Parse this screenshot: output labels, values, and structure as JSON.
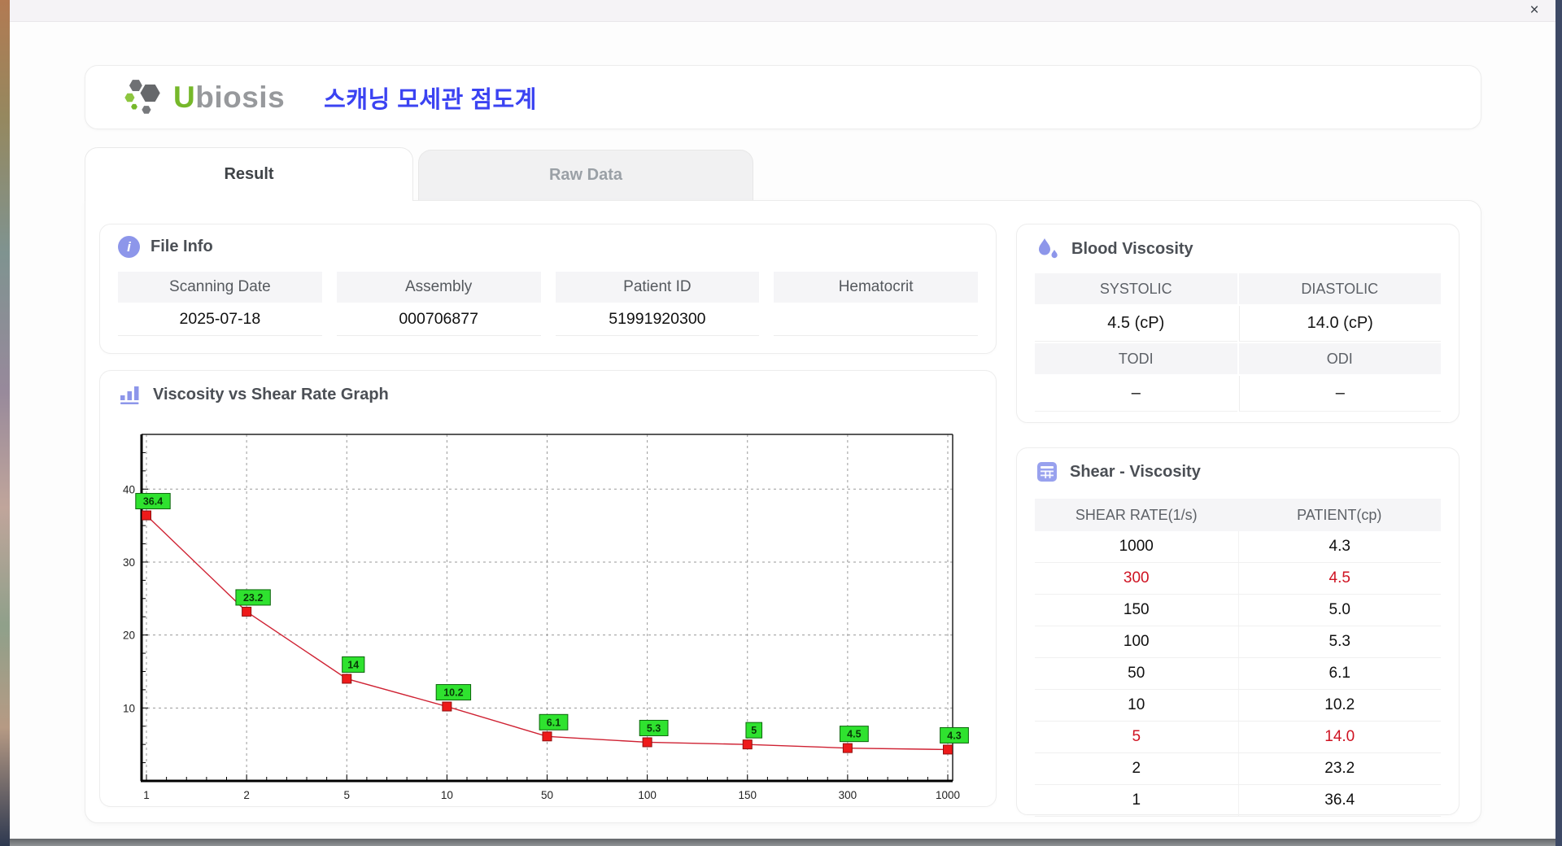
{
  "window": {
    "close_label": "×"
  },
  "icons": {
    "info_glyph": "i"
  },
  "header": {
    "logo_u": "U",
    "logo_rest": "biosis",
    "title_ko": "스캐닝 모세관 점도계"
  },
  "tabs": [
    {
      "label": "Result"
    },
    {
      "label": "Raw Data"
    }
  ],
  "file_info": {
    "title": "File Info",
    "fields": [
      {
        "label": "Scanning Date",
        "value": "2025-07-18"
      },
      {
        "label": "Assembly",
        "value": "000706877"
      },
      {
        "label": "Patient ID",
        "value": "51991920300"
      },
      {
        "label": "Hematocrit",
        "value": ""
      }
    ]
  },
  "graph": {
    "title": "Viscosity vs Shear Rate Graph"
  },
  "blood_viscosity": {
    "title": "Blood Viscosity",
    "cells": [
      {
        "header": "SYSTOLIC",
        "value": "4.5 (cP)"
      },
      {
        "header": "DIASTOLIC",
        "value": "14.0 (cP)"
      },
      {
        "header": "TODI",
        "value": "–"
      },
      {
        "header": "ODI",
        "value": "–"
      }
    ]
  },
  "shear_table": {
    "title": "Shear - Viscosity",
    "columns": [
      "SHEAR RATE(1/s)",
      "PATIENT(cp)"
    ],
    "rows": [
      {
        "shear": "1000",
        "patient": "4.3",
        "highlight": false
      },
      {
        "shear": "300",
        "patient": "4.5",
        "highlight": true
      },
      {
        "shear": "150",
        "patient": "5.0",
        "highlight": false
      },
      {
        "shear": "100",
        "patient": "5.3",
        "highlight": false
      },
      {
        "shear": "50",
        "patient": "6.1",
        "highlight": false
      },
      {
        "shear": "10",
        "patient": "10.2",
        "highlight": false
      },
      {
        "shear": "5",
        "patient": "14.0",
        "highlight": true
      },
      {
        "shear": "2",
        "patient": "23.2",
        "highlight": false
      },
      {
        "shear": "1",
        "patient": "36.4",
        "highlight": false
      }
    ]
  },
  "chart_data": {
    "type": "line",
    "title": "Viscosity vs Shear Rate Graph",
    "x": [
      1,
      2,
      5,
      10,
      50,
      100,
      150,
      300,
      1000
    ],
    "y": [
      36.4,
      23.2,
      14,
      10.2,
      6.1,
      5.3,
      5,
      4.5,
      4.3
    ],
    "point_labels": [
      "36.4",
      "23.2",
      "14",
      "10.2",
      "6.1",
      "5.3",
      "5",
      "4.5",
      "4.3"
    ],
    "x_axis_type": "categorical",
    "xlabel": "",
    "ylabel": "",
    "yticks": [
      10,
      20,
      30,
      40
    ],
    "ylim": [
      0,
      47.5
    ],
    "grid": true,
    "line_color": "#cf2233",
    "marker_color": "#ee1a1a",
    "marker_stroke": "#8f0f0f",
    "label_bg": "#2fe22f",
    "label_border": "#0b650b"
  }
}
